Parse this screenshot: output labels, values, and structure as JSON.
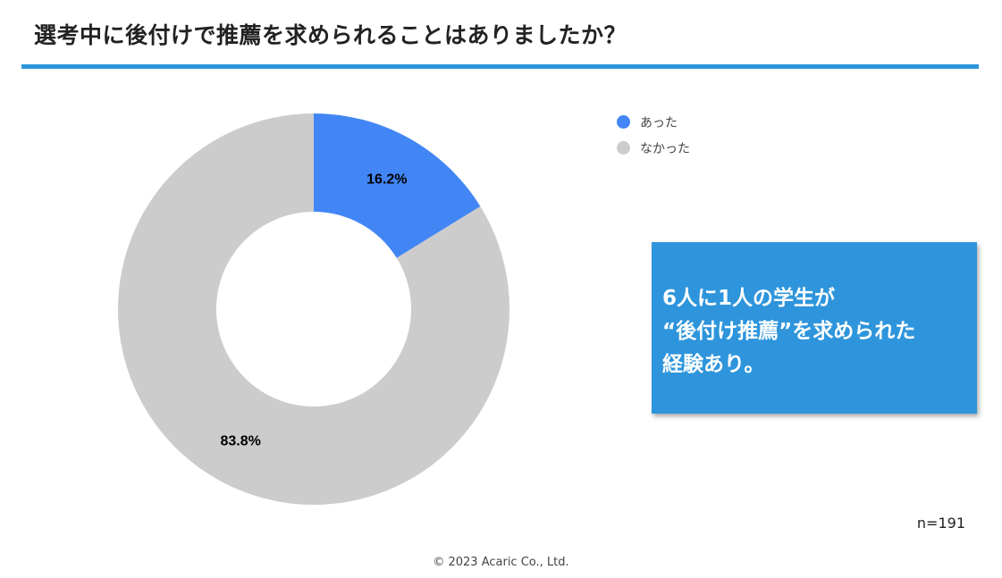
{
  "title": "選考中に後付けで推薦を求められることはありましたか？",
  "chart_data": {
    "type": "pie",
    "variant": "donut",
    "categories": [
      "あった",
      "なかった"
    ],
    "values": [
      16.2,
      83.8
    ],
    "labels": [
      "16.2%",
      "83.8%"
    ],
    "colors": [
      "#4286f5",
      "#cccccc"
    ],
    "legend_position": "top-right"
  },
  "callout": {
    "lines": [
      "6人に1人の学生が",
      "“後付け推薦”を求められた",
      "経験あり。"
    ]
  },
  "sample_size": "n=191",
  "copyright": "© 2023 Acaric Co., Ltd."
}
